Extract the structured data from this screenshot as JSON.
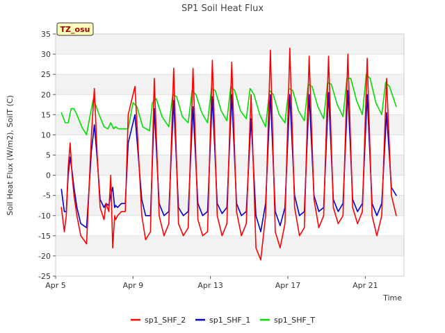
{
  "chart_data": {
    "type": "line",
    "title": "SP1 Soil Heat Flux",
    "xlabel": "Time",
    "ylabel": "Soil Heat Flux (W/m2), SoilT (C)",
    "tag": "TZ_osu",
    "ylim": [
      -25,
      35
    ],
    "yticks": [
      -25,
      -20,
      -15,
      -10,
      -5,
      0,
      5,
      10,
      15,
      20,
      25,
      30,
      35
    ],
    "xlim": [
      5,
      23
    ],
    "xticks": [
      {
        "value": 5,
        "label": "Apr 5"
      },
      {
        "value": 9,
        "label": "Apr 9"
      },
      {
        "value": 13,
        "label": "Apr 13"
      },
      {
        "value": 17,
        "label": "Apr 17"
      },
      {
        "value": 21,
        "label": "Apr 21"
      }
    ],
    "grid": true,
    "legend_position": "bottom",
    "series": [
      {
        "name": "sp1_SHF_2",
        "color": "#ff0000",
        "x": [
          5.3,
          5.45,
          5.55,
          5.65,
          5.75,
          5.85,
          5.95,
          6.1,
          6.3,
          6.6,
          6.85,
          7.0,
          7.15,
          7.3,
          7.5,
          7.6,
          7.75,
          7.85,
          7.95,
          8.05,
          8.1,
          8.2,
          8.4,
          8.6,
          8.75,
          9.1,
          9.45,
          9.65,
          9.9,
          10.1,
          10.35,
          10.6,
          10.85,
          11.1,
          11.35,
          11.6,
          11.85,
          12.1,
          12.35,
          12.6,
          12.85,
          13.1,
          13.35,
          13.6,
          13.85,
          14.1,
          14.35,
          14.6,
          14.85,
          15.1,
          15.35,
          15.6,
          15.85,
          16.1,
          16.35,
          16.6,
          16.85,
          17.1,
          17.35,
          17.6,
          17.85,
          18.1,
          18.35,
          18.6,
          18.85,
          19.1,
          19.35,
          19.6,
          19.85,
          20.1,
          20.35,
          20.6,
          20.85,
          21.1,
          21.35,
          21.6,
          21.85,
          22.1,
          22.35,
          22.6
        ],
        "values": [
          -8,
          -14,
          -10,
          2,
          8,
          0,
          -5,
          -10,
          -15,
          -17,
          10,
          21.5,
          5,
          -8,
          -11,
          -7,
          -9,
          0,
          -18,
          -10,
          -11,
          -10,
          -9,
          -9,
          15,
          22,
          -10,
          -16,
          -14,
          24,
          -10,
          -15,
          -12,
          26.5,
          -12,
          -15,
          -13,
          26.5,
          -11,
          -15,
          -14,
          28.5,
          -10,
          -15,
          -12,
          28,
          -9,
          -15,
          -12,
          20,
          -18,
          -21,
          -10,
          31,
          -14,
          -18,
          -12,
          31.5,
          -8,
          -15,
          -13,
          29.5,
          -6,
          -13,
          -10,
          29.5,
          -8,
          -12,
          -10,
          30,
          -8,
          -12,
          -9,
          29,
          -10,
          -15,
          -10,
          24,
          -5,
          -10
        ]
      },
      {
        "name": "sp1_SHF_1",
        "color": "#0000cc",
        "x": [
          5.3,
          5.45,
          5.55,
          5.65,
          5.75,
          5.85,
          5.95,
          6.1,
          6.3,
          6.6,
          6.85,
          7.0,
          7.15,
          7.3,
          7.5,
          7.6,
          7.75,
          7.85,
          7.95,
          8.05,
          8.1,
          8.2,
          8.4,
          8.6,
          8.75,
          9.1,
          9.45,
          9.65,
          9.9,
          10.1,
          10.35,
          10.6,
          10.85,
          11.1,
          11.35,
          11.6,
          11.85,
          12.1,
          12.35,
          12.6,
          12.85,
          13.1,
          13.35,
          13.6,
          13.85,
          14.1,
          14.35,
          14.6,
          14.85,
          15.1,
          15.35,
          15.6,
          15.85,
          16.1,
          16.35,
          16.6,
          16.85,
          17.1,
          17.35,
          17.6,
          17.85,
          18.1,
          18.35,
          18.6,
          18.85,
          19.1,
          19.35,
          19.6,
          19.85,
          20.1,
          20.35,
          20.6,
          20.85,
          21.1,
          21.35,
          21.6,
          21.85,
          22.1,
          22.35,
          22.6
        ],
        "values": [
          -3.5,
          -9,
          -9,
          0,
          4.5,
          1,
          -3,
          -8,
          -12,
          -13,
          6,
          12.5,
          4,
          -6,
          -8,
          -7,
          -7.5,
          -5,
          -3,
          -8,
          -7.5,
          -8,
          -7,
          -7,
          8,
          15,
          -6,
          -10,
          -10,
          16.5,
          -7,
          -10,
          -9,
          18.5,
          -8,
          -10,
          -9,
          17,
          -7,
          -10,
          -9,
          19.5,
          -7,
          -9.5,
          -8,
          20,
          -7,
          -10,
          -9,
          14,
          -10,
          -14,
          -7,
          20,
          -9,
          -12.5,
          -8,
          20,
          -5,
          -10,
          -9,
          20,
          -5,
          -9,
          -8,
          20.5,
          -6,
          -9,
          -7,
          21,
          -6,
          -9,
          -7,
          20,
          -7,
          -10,
          -7,
          15.5,
          -3,
          -5
        ]
      },
      {
        "name": "sp1_SHF_T",
        "color": "#00dd00",
        "x": [
          5.3,
          5.5,
          5.65,
          5.8,
          5.95,
          6.1,
          6.35,
          6.6,
          6.75,
          6.95,
          7.1,
          7.25,
          7.5,
          7.7,
          7.85,
          8.0,
          8.1,
          8.25,
          8.5,
          8.75,
          9.0,
          9.2,
          9.5,
          9.85,
          10.0,
          10.2,
          10.5,
          10.85,
          11.05,
          11.25,
          11.55,
          11.85,
          12.05,
          12.25,
          12.55,
          12.85,
          13.05,
          13.25,
          13.55,
          13.85,
          14.05,
          14.25,
          14.55,
          14.85,
          15.05,
          15.25,
          15.55,
          15.85,
          16.05,
          16.25,
          16.55,
          16.85,
          17.05,
          17.25,
          17.55,
          17.85,
          18.05,
          18.25,
          18.55,
          18.85,
          19.05,
          19.25,
          19.55,
          19.85,
          20.05,
          20.25,
          20.55,
          20.85,
          21.05,
          21.25,
          21.55,
          21.85,
          22.05,
          22.25,
          22.6
        ],
        "values": [
          15.5,
          13,
          13,
          16.5,
          16.5,
          15,
          12,
          10,
          14,
          19,
          17,
          15,
          12,
          11.5,
          13,
          11.5,
          12,
          11.5,
          11.5,
          11.5,
          18,
          17,
          12,
          11,
          18,
          19,
          14.5,
          12,
          20,
          19.5,
          14.5,
          13,
          21,
          20,
          15.5,
          13,
          21.5,
          21,
          16,
          13.5,
          22,
          21,
          16,
          14,
          21.5,
          20,
          15,
          12,
          21,
          20,
          15,
          13,
          21.5,
          21,
          16,
          13.5,
          22.5,
          22,
          17,
          14,
          23,
          22.5,
          17.5,
          14.5,
          24,
          24,
          18.5,
          15,
          25,
          24,
          18,
          15,
          23,
          22,
          17
        ]
      }
    ]
  }
}
